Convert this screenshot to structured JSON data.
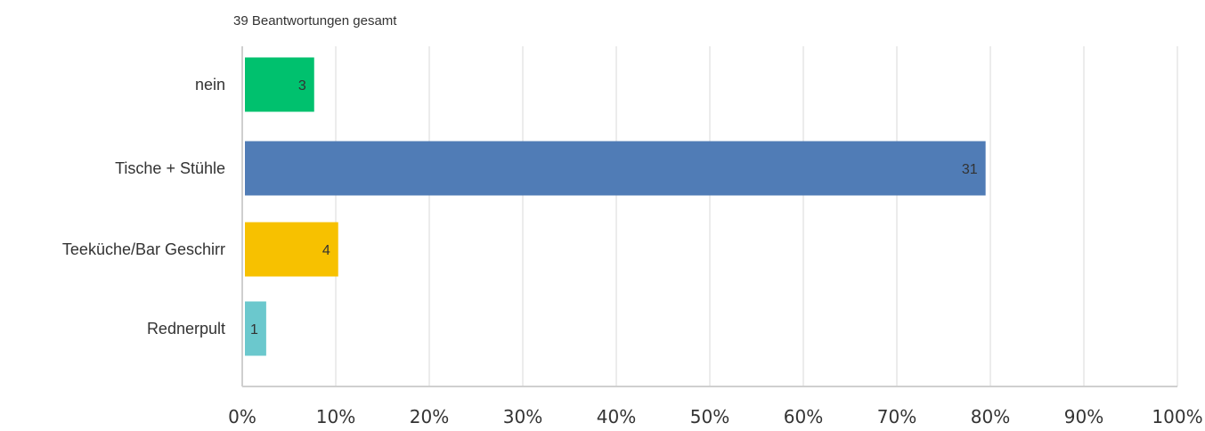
{
  "chart_data": {
    "type": "bar",
    "orientation": "horizontal",
    "subtitle": "39 Beantwortungen gesamt",
    "total_responses": 39,
    "categories": [
      "nein",
      "Tische + Stühle",
      "Teeküche/Bar Geschirr",
      "Rednerpult"
    ],
    "counts": [
      3,
      31,
      4,
      1
    ],
    "values_percent": [
      7.69,
      79.49,
      10.26,
      2.56
    ],
    "colors": [
      "#00c16e",
      "#507cb6",
      "#f7c100",
      "#6bc8cd"
    ],
    "xlim": [
      0,
      100
    ],
    "x_ticks": [
      "0%",
      "10%",
      "20%",
      "30%",
      "40%",
      "50%",
      "60%",
      "70%",
      "80%",
      "90%",
      "100%"
    ],
    "grid": true
  }
}
